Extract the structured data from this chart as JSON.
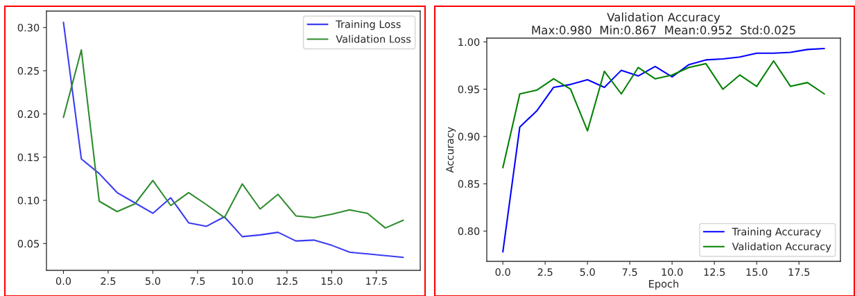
{
  "chart_data": [
    {
      "type": "line",
      "x": [
        0,
        1,
        2,
        3,
        4,
        5,
        6,
        7,
        8,
        9,
        10,
        11,
        12,
        13,
        14,
        15,
        16,
        17,
        18,
        19
      ],
      "series": [
        {
          "name": "Training Loss",
          "color": "#3b3bf2",
          "values": [
            0.306,
            0.148,
            0.131,
            0.109,
            0.097,
            0.085,
            0.103,
            0.074,
            0.07,
            0.081,
            0.058,
            0.06,
            0.063,
            0.053,
            0.054,
            0.048,
            0.04,
            0.038,
            0.036,
            0.034
          ]
        },
        {
          "name": "Validation Loss",
          "color": "#2e8b2e",
          "values": [
            0.196,
            0.274,
            0.099,
            0.087,
            0.096,
            0.123,
            0.094,
            0.109,
            0.095,
            0.08,
            0.119,
            0.09,
            0.107,
            0.082,
            0.08,
            0.084,
            0.089,
            0.085,
            0.068,
            0.077
          ]
        }
      ],
      "xlim": [
        -0.95,
        19.95
      ],
      "ylim": [
        0.019,
        0.319
      ],
      "xticks": [
        {
          "value": 0,
          "label": "0.0"
        },
        {
          "value": 2.5,
          "label": "2.5"
        },
        {
          "value": 5,
          "label": "5.0"
        },
        {
          "value": 7.5,
          "label": "7.5"
        },
        {
          "value": 10,
          "label": "10.0"
        },
        {
          "value": 12.5,
          "label": "12.5"
        },
        {
          "value": 15,
          "label": "15.0"
        },
        {
          "value": 17.5,
          "label": "17.5"
        }
      ],
      "yticks": [
        {
          "value": 0.05,
          "label": "0.05"
        },
        {
          "value": 0.1,
          "label": "0.10"
        },
        {
          "value": 0.15,
          "label": "0.15"
        },
        {
          "value": 0.2,
          "label": "0.20"
        },
        {
          "value": 0.25,
          "label": "0.25"
        },
        {
          "value": 0.3,
          "label": "0.30"
        }
      ],
      "grid": false,
      "legend": "top right",
      "marker": "none",
      "line_style": "solid"
    },
    {
      "type": "line",
      "title": "Validation Accuracy",
      "subtitle": "Max:0.980  Min:0.867  Mean:0.952  Std:0.025",
      "xlabel": "Epoch",
      "ylabel": "Accuracy",
      "x": [
        0,
        1,
        2,
        3,
        4,
        5,
        6,
        7,
        8,
        9,
        10,
        11,
        12,
        13,
        14,
        15,
        16,
        17,
        18,
        19
      ],
      "series": [
        {
          "name": "Training Accuracy",
          "color": "#0000ff",
          "values": [
            0.778,
            0.91,
            0.927,
            0.952,
            0.955,
            0.96,
            0.952,
            0.97,
            0.964,
            0.974,
            0.963,
            0.976,
            0.981,
            0.982,
            0.984,
            0.988,
            0.988,
            0.989,
            0.992,
            0.993
          ]
        },
        {
          "name": "Validation Accuracy",
          "color": "#008000",
          "values": [
            0.867,
            0.945,
            0.949,
            0.961,
            0.95,
            0.906,
            0.969,
            0.945,
            0.973,
            0.961,
            0.965,
            0.973,
            0.977,
            0.95,
            0.965,
            0.953,
            0.98,
            0.953,
            0.957,
            0.945
          ]
        }
      ],
      "xlim": [
        -0.95,
        19.95
      ],
      "ylim": [
        0.768,
        1.004
      ],
      "xticks": [
        {
          "value": 0,
          "label": "0.0"
        },
        {
          "value": 2.5,
          "label": "2.5"
        },
        {
          "value": 5,
          "label": "5.0"
        },
        {
          "value": 7.5,
          "label": "7.5"
        },
        {
          "value": 10,
          "label": "10.0"
        },
        {
          "value": 12.5,
          "label": "12.5"
        },
        {
          "value": 15,
          "label": "15.0"
        },
        {
          "value": 17.5,
          "label": "17.5"
        }
      ],
      "yticks": [
        {
          "value": 0.8,
          "label": "0.80"
        },
        {
          "value": 0.85,
          "label": "0.85"
        },
        {
          "value": 0.9,
          "label": "0.90"
        },
        {
          "value": 0.95,
          "label": "0.95"
        },
        {
          "value": 1.0,
          "label": "1.00"
        }
      ],
      "grid": false,
      "legend": "bottom right",
      "marker": "none",
      "line_style": "solid"
    }
  ]
}
